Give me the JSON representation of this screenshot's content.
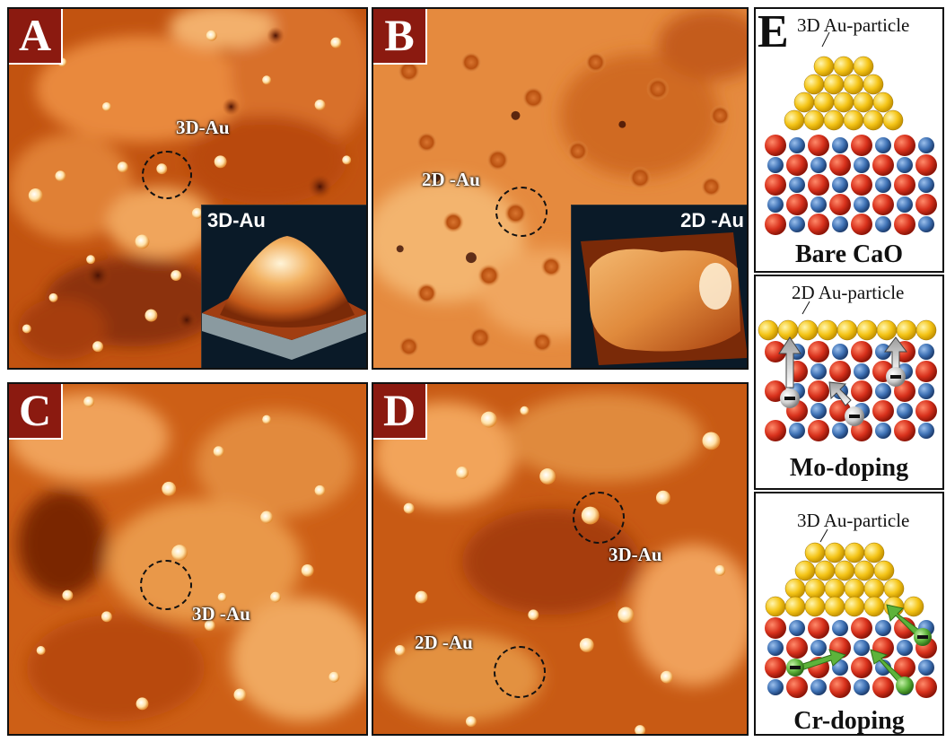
{
  "panels": {
    "A": {
      "letter": "A",
      "label": "3D-Au",
      "inset_label": "3D-Au"
    },
    "B": {
      "letter": "B",
      "label": "2D -Au",
      "inset_label": "2D -Au"
    },
    "C": {
      "letter": "C",
      "label": "3D -Au"
    },
    "D": {
      "letter": "D",
      "label_3d": "3D-Au",
      "label_2d": "2D -Au"
    }
  },
  "panelE": {
    "letter": "E",
    "top": {
      "caption": "3D Au-particle",
      "title": "Bare CaO"
    },
    "middle": {
      "caption": "2D Au-particle",
      "title": "Mo-doping"
    },
    "bottom": {
      "caption": "3D Au-particle",
      "title": "Cr-doping"
    }
  },
  "colors": {
    "stm_dark": "#5a1a06",
    "stm_mid": "#c8550f",
    "stm_light": "#f4a25a",
    "letter_bg": "#8b1a10",
    "gold": "#f5c518",
    "red_atom": "#d8311c",
    "blue_atom": "#3f72b5",
    "green_dopant": "#5db33b",
    "grey_dopant": "#cfcfcf"
  }
}
